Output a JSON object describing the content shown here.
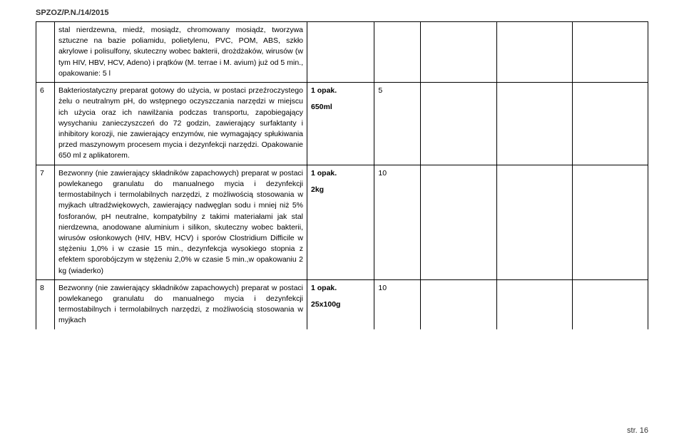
{
  "doc_id": "SPZOZ/P.N./14/2015",
  "footer": "str. 16",
  "rows": {
    "r0": {
      "idx": "",
      "desc": "stal nierdzewna, miedź, mosiądz, chromowany mosiądz, tworzywa sztuczne na bazie poliamidu, polietylenu, PVC, POM, ABS, szkło akrylowe i polisulfony, skuteczny wobec bakterii, drożdżaków, wirusów (w tym HIV, HBV, HCV, Adeno) i prątków (M. terrae i M. avium) już od 5 min., opakowanie: 5 l",
      "pack_line1": "",
      "pack_line2": "",
      "qty": ""
    },
    "r1": {
      "idx": "6",
      "desc": "Bakteriostatyczny preparat gotowy do użycia, w postaci przeźroczystego żelu o neutralnym pH, do wstępnego oczyszczania narzędzi w miejscu ich użycia oraz ich nawilżania podczas transportu, zapobiegający wysychaniu zanieczyszczeń do 72 godzin, zawierający surfaktanty i inhibitory korozji, nie zawierający enzymów, nie wymagający spłukiwania przed maszynowym procesem mycia i dezynfekcji narzędzi. Opakowanie 650 ml z aplikatorem.",
      "pack_line1": "1 opak.",
      "pack_line2": "650ml",
      "qty": "5"
    },
    "r2": {
      "idx": "7",
      "desc": "Bezwonny (nie zawierający składników zapachowych) preparat w postaci powlekanego granulatu do manualnego mycia i dezynfekcji termostabilnych i termolabilnych narzędzi, z możliwością stosowania w myjkach ultradźwiękowych, zawierający nadwęglan sodu i mniej niż 5% fosforanów, pH neutralne, kompatybilny z takimi materiałami jak stal nierdzewna, anodowane aluminium i silikon, skuteczny wobec bakterii, wirusów osłonkowych (HIV, HBV, HCV) i sporów Clostridium Difficile w stężeniu 1,0% i w czasie 15 min., dezynfekcja wysokiego stopnia z efektem sporobójczym w stężeniu 2,0% w czasie 5 min.,w opakowaniu 2 kg (wiaderko)",
      "pack_line1": "1 opak.",
      "pack_line2": "2kg",
      "qty": "10"
    },
    "r3": {
      "idx": "8",
      "desc": "Bezwonny (nie zawierający składników zapachowych) preparat w postaci powlekanego granulatu do manualnego mycia i dezynfekcji termostabilnych i termolabilnych narzędzi, z możliwością stosowania w myjkach",
      "pack_line1": "1 opak.",
      "pack_line2": "25x100g",
      "qty": "10"
    }
  }
}
